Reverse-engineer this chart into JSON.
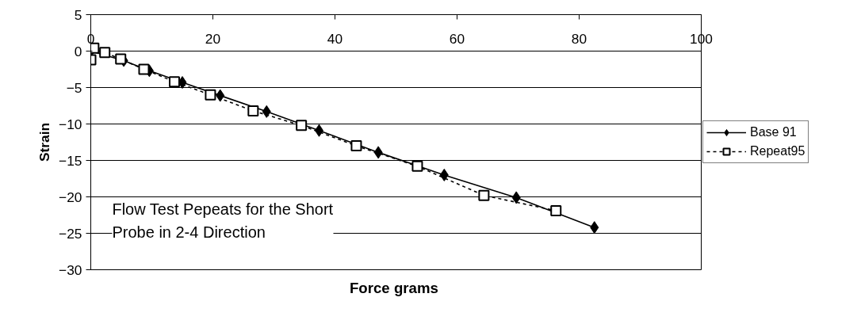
{
  "chart_data": {
    "type": "line",
    "xlabel": "Force  grams",
    "ylabel": "Strain",
    "annotations": [
      "Flow Test Pepeats for the Short\nProbe in 2-4 Direction"
    ],
    "xlim": [
      0,
      100
    ],
    "xticks": [
      0,
      20,
      40,
      60,
      80,
      100
    ],
    "ylim": [
      -30,
      5
    ],
    "yticks": [
      -30,
      -25,
      -20,
      -15,
      -10,
      -5,
      0,
      5
    ],
    "grid": "y",
    "legend": "right",
    "series": [
      {
        "name": "Base 91",
        "color": "#000000",
        "marker": "diamond",
        "line_style": "solid",
        "x": [
          0,
          5.4,
          9.6,
          15.0,
          21.2,
          28.8,
          37.4,
          47.1,
          57.9,
          69.7,
          82.5
        ],
        "values": [
          0,
          -1.3,
          -2.7,
          -4.3,
          -6.1,
          -8.3,
          -10.9,
          -13.9,
          -17.0,
          -20.1,
          -24.2
        ]
      },
      {
        "name": "Repeat95",
        "color": "#000000",
        "marker": "square",
        "line_style": "dashed",
        "x": [
          0,
          0.5,
          2.3,
          4.9,
          8.7,
          13.7,
          19.6,
          26.6,
          34.5,
          43.5,
          53.5,
          64.4,
          76.2
        ],
        "values": [
          -1.2,
          0.4,
          -0.2,
          -1.1,
          -2.5,
          -4.2,
          -6.0,
          -8.2,
          -10.2,
          -13.0,
          -15.8,
          -19.8,
          -21.9
        ]
      }
    ]
  }
}
